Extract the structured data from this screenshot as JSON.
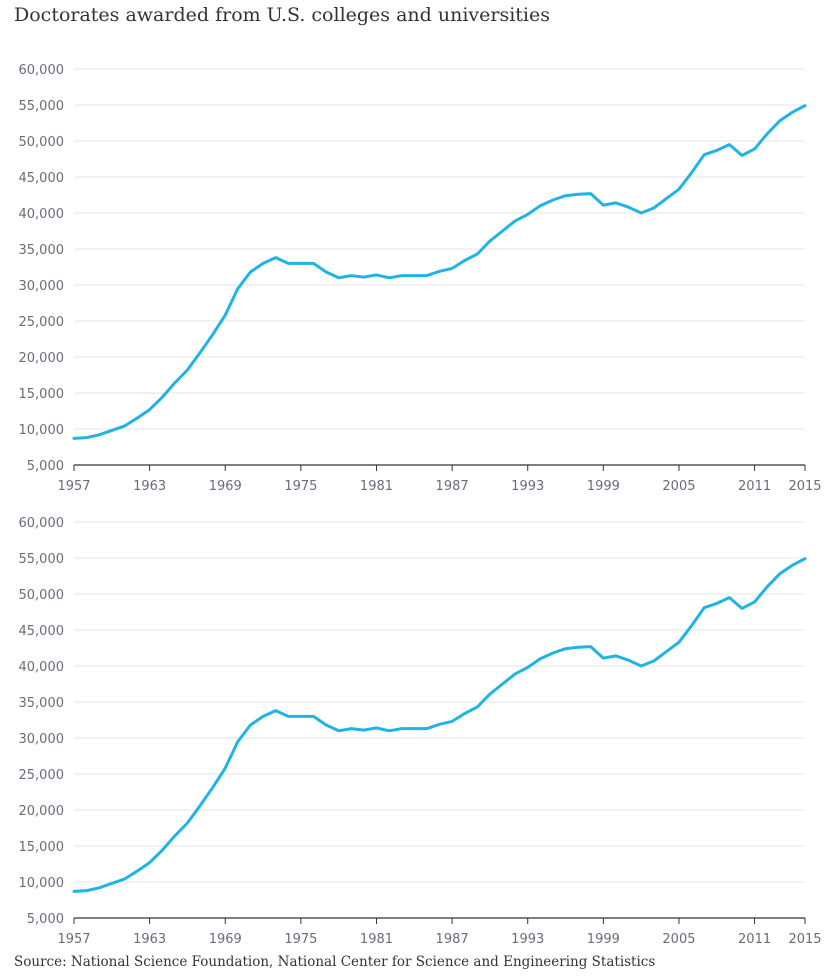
{
  "title": "Doctorates awarded from U.S. colleges and universities",
  "source": "Source: National Science Foundation, National Center for Science and Engineering Statistics",
  "colors": {
    "line": "#1fb4e3",
    "grid": "#e6e6e6",
    "axis": "#333333",
    "tick_text": "#6b6b7b"
  },
  "chart_data": [
    {
      "type": "line",
      "ylim": [
        5000,
        60000
      ],
      "xlim": [
        1957,
        2015
      ],
      "y_ticks": [
        "5,000",
        "10,000",
        "15,000",
        "20,000",
        "25,000",
        "30,000",
        "35,000",
        "40,000",
        "45,000",
        "50,000",
        "55,000",
        "60,000"
      ],
      "x_ticks": [
        "1957",
        "1963",
        "1969",
        "1975",
        "1981",
        "1987",
        "1993",
        "1999",
        "2005",
        "2011",
        "2015"
      ],
      "grid": true,
      "series": [
        {
          "x": [
            1957,
            1958,
            1959,
            1960,
            1961,
            1962,
            1963,
            1964,
            1965,
            1966,
            1967,
            1968,
            1969,
            1970,
            1971,
            1972,
            1973,
            1974,
            1975,
            1976,
            1977,
            1978,
            1979,
            1980,
            1981,
            1982,
            1983,
            1984,
            1985,
            1986,
            1987,
            1988,
            1989,
            1990,
            1991,
            1992,
            1993,
            1994,
            1995,
            1996,
            1997,
            1998,
            1999,
            2000,
            2001,
            2002,
            2003,
            2004,
            2005,
            2006,
            2007,
            2008,
            2009,
            2010,
            2011,
            2012,
            2013,
            2014,
            2015
          ],
          "y": [
            8700,
            8800,
            9200,
            9800,
            10400,
            11500,
            12700,
            14400,
            16400,
            18200,
            20600,
            23100,
            25800,
            29500,
            31800,
            33000,
            33800,
            33000,
            33000,
            33000,
            31800,
            31000,
            31300,
            31100,
            31400,
            31000,
            31300,
            31300,
            31300,
            31900,
            32300,
            33400,
            34300,
            36100,
            37500,
            38900,
            39800,
            41000,
            41800,
            42400,
            42600,
            42700,
            41100,
            41400,
            40800,
            40000,
            40700,
            42000,
            43300,
            45600,
            48100,
            48700,
            49500,
            48000,
            48900,
            51000,
            52800,
            54000,
            54900
          ]
        }
      ]
    },
    {
      "type": "line",
      "ylim": [
        5000,
        60000
      ],
      "xlim": [
        1957,
        2015
      ],
      "y_ticks": [
        "5,000",
        "10,000",
        "15,000",
        "20,000",
        "25,000",
        "30,000",
        "35,000",
        "40,000",
        "45,000",
        "50,000",
        "55,000",
        "60,000"
      ],
      "x_ticks": [
        "1957",
        "1963",
        "1969",
        "1975",
        "1981",
        "1987",
        "1993",
        "1999",
        "2005",
        "2011",
        "2015"
      ],
      "grid": true,
      "series": [
        {
          "x": [
            1957,
            1958,
            1959,
            1960,
            1961,
            1962,
            1963,
            1964,
            1965,
            1966,
            1967,
            1968,
            1969,
            1970,
            1971,
            1972,
            1973,
            1974,
            1975,
            1976,
            1977,
            1978,
            1979,
            1980,
            1981,
            1982,
            1983,
            1984,
            1985,
            1986,
            1987,
            1988,
            1989,
            1990,
            1991,
            1992,
            1993,
            1994,
            1995,
            1996,
            1997,
            1998,
            1999,
            2000,
            2001,
            2002,
            2003,
            2004,
            2005,
            2006,
            2007,
            2008,
            2009,
            2010,
            2011,
            2012,
            2013,
            2014,
            2015
          ],
          "y": [
            8700,
            8800,
            9200,
            9800,
            10400,
            11500,
            12700,
            14400,
            16400,
            18200,
            20600,
            23100,
            25800,
            29500,
            31800,
            33000,
            33800,
            33000,
            33000,
            33000,
            31800,
            31000,
            31300,
            31100,
            31400,
            31000,
            31300,
            31300,
            31300,
            31900,
            32300,
            33400,
            34300,
            36100,
            37500,
            38900,
            39800,
            41000,
            41800,
            42400,
            42600,
            42700,
            41100,
            41400,
            40800,
            40000,
            40700,
            42000,
            43300,
            45600,
            48100,
            48700,
            49500,
            48000,
            48900,
            51000,
            52800,
            54000,
            54900
          ]
        }
      ]
    }
  ]
}
